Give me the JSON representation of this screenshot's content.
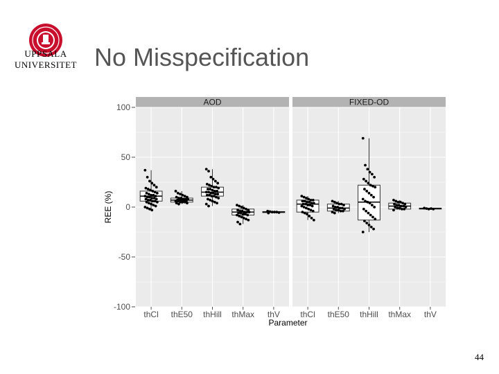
{
  "slide": {
    "university_line1": "UPPSALA",
    "university_line2": "UNIVERSITET",
    "title": "No Misspecification",
    "page_number": "44"
  },
  "colors": {
    "panel_bg": "#ebebeb",
    "strip_bg": "#b3b3b3",
    "grid": "#ffffff",
    "logo": "#c8102e",
    "title_text": "#555555"
  },
  "chart_data": {
    "type": "box",
    "xlabel": "Parameter",
    "ylabel": "REE (%)",
    "ylim": [
      -100,
      100
    ],
    "yticks": [
      100,
      50,
      0,
      -50,
      -100
    ],
    "grid": true,
    "legend": "none",
    "categories": [
      "thCl",
      "thE50",
      "thHill",
      "thMax",
      "thV"
    ],
    "panels": [
      {
        "name": "AOD",
        "boxes": [
          {
            "category": "thCl",
            "min": -3,
            "q1": 6,
            "median": 11,
            "q3": 16,
            "max": 37,
            "points": [
              37,
              30,
              26,
              24,
              22,
              20,
              19,
              18,
              17,
              16,
              15,
              14,
              14,
              13,
              12,
              12,
              11,
              11,
              10,
              10,
              9,
              9,
              8,
              8,
              7,
              7,
              6,
              6,
              5,
              5,
              4,
              3,
              2,
              1,
              0,
              -1,
              -2,
              -3
            ]
          },
          {
            "category": "thE50",
            "min": 3,
            "q1": 5,
            "median": 7,
            "q3": 9,
            "max": 16,
            "points": [
              16,
              14,
              13,
              12,
              11,
              10,
              10,
              9,
              9,
              8,
              8,
              8,
              7,
              7,
              7,
              6,
              6,
              6,
              6,
              5,
              5,
              5,
              4,
              4,
              3
            ]
          },
          {
            "category": "thHill",
            "min": 1,
            "q1": 11,
            "median": 15,
            "q3": 20,
            "max": 38,
            "points": [
              38,
              36,
              30,
              28,
              26,
              24,
              23,
              22,
              21,
              20,
              20,
              19,
              18,
              18,
              17,
              16,
              16,
              15,
              15,
              14,
              14,
              13,
              13,
              12,
              12,
              11,
              11,
              10,
              9,
              8,
              7,
              6,
              5,
              4,
              3,
              1
            ]
          },
          {
            "category": "thMax",
            "min": -17,
            "q1": -8,
            "median": -5,
            "q3": -2,
            "max": 2,
            "points": [
              2,
              1,
              0,
              -1,
              -2,
              -3,
              -3,
              -4,
              -4,
              -5,
              -5,
              -5,
              -6,
              -6,
              -7,
              -7,
              -8,
              -8,
              -9,
              -10,
              -11,
              -12,
              -13,
              -15,
              -17
            ]
          },
          {
            "category": "thV",
            "min": -6,
            "q1": -5.5,
            "median": -5,
            "q3": -4.5,
            "max": -4,
            "points": [
              -4,
              -4.5,
              -5,
              -5,
              -5,
              -5.5,
              -6
            ]
          }
        ]
      },
      {
        "name": "FIXED-OD",
        "boxes": [
          {
            "category": "thCl",
            "min": -13,
            "q1": -5,
            "median": 3,
            "q3": 7,
            "max": 11,
            "points": [
              11,
              10,
              9,
              8,
              7,
              7,
              6,
              6,
              5,
              5,
              4,
              4,
              3,
              3,
              2,
              2,
              1,
              1,
              0,
              -1,
              -2,
              -3,
              -4,
              -5,
              -6,
              -7,
              -9,
              -11,
              -13
            ]
          },
          {
            "category": "thE50",
            "min": -6,
            "q1": -4,
            "median": -1,
            "q3": 3,
            "max": 6,
            "points": [
              6,
              5,
              4,
              3,
              3,
              2,
              1,
              0,
              0,
              -1,
              -1,
              -2,
              -2,
              -3,
              -3,
              -4,
              -4,
              -5,
              -6
            ]
          },
          {
            "category": "thHill",
            "min": -25,
            "q1": -13,
            "median": 5,
            "q3": 22,
            "max": 69,
            "points": [
              69,
              42,
              38,
              35,
              33,
              30,
              28,
              26,
              24,
              22,
              21,
              20,
              18,
              16,
              14,
              12,
              10,
              8,
              6,
              5,
              4,
              2,
              0,
              -2,
              -4,
              -6,
              -8,
              -10,
              -12,
              -14,
              -16,
              -18,
              -20,
              -22,
              -25
            ]
          },
          {
            "category": "thMax",
            "min": -3,
            "q1": -2,
            "median": 1,
            "q3": 4,
            "max": 7,
            "points": [
              7,
              6,
              5,
              5,
              4,
              3,
              3,
              2,
              2,
              1,
              1,
              0,
              0,
              -1,
              -1,
              -2,
              -2,
              -3
            ]
          },
          {
            "category": "thV",
            "min": -2,
            "q1": -2,
            "median": -1.5,
            "q3": -1,
            "max": -1,
            "points": [
              -1,
              -1.5,
              -2,
              -1.5,
              -2
            ]
          }
        ]
      }
    ]
  }
}
